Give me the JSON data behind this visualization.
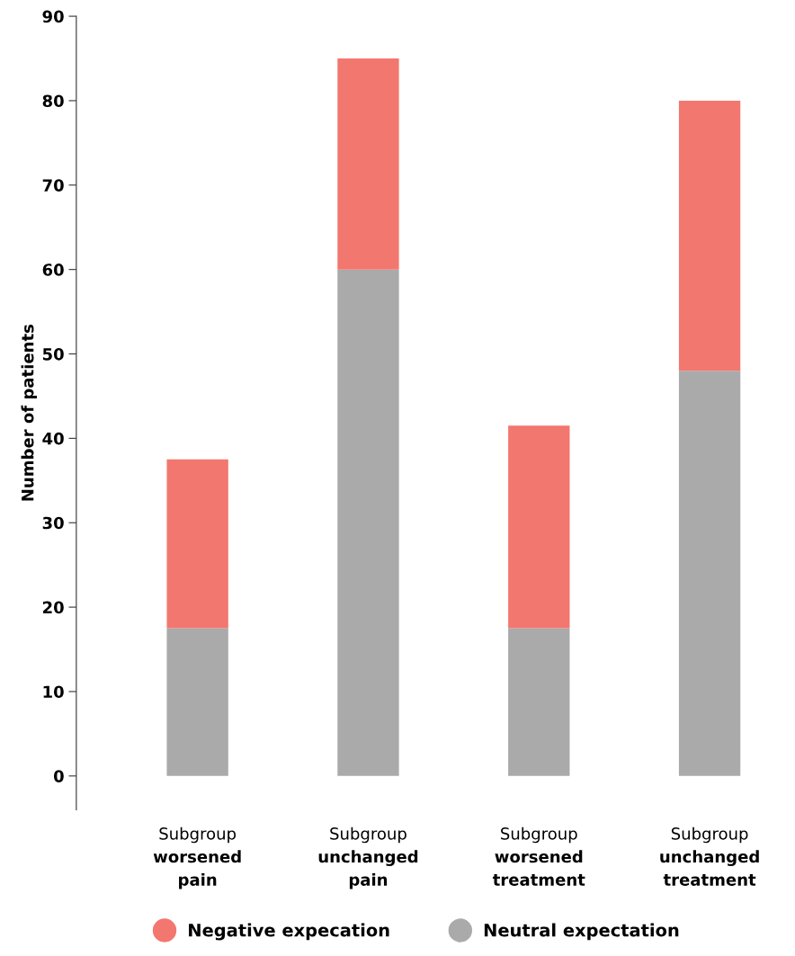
{
  "chart_data": {
    "type": "bar",
    "stacked": true,
    "ylabel": "Number of patients",
    "categories": [
      "Subgroup\nworsened\npain",
      "Subgroup\nunchanged\npain",
      "Subgroup\nworsened\ntreatment",
      "Subgroup\nunchanged\ntreatment"
    ],
    "series": [
      {
        "name": "Neutral expectation",
        "color": "#aaaaaa",
        "values": [
          17.5,
          60,
          17.5,
          48
        ]
      },
      {
        "name": "Negative expecation",
        "color": "#f2776f",
        "values": [
          20,
          25,
          24,
          32
        ]
      }
    ],
    "ylim": [
      -4,
      90
    ],
    "yticks": [
      0,
      10,
      20,
      30,
      40,
      50,
      60,
      70,
      80,
      90
    ],
    "grid": false,
    "legend": "bottom"
  }
}
